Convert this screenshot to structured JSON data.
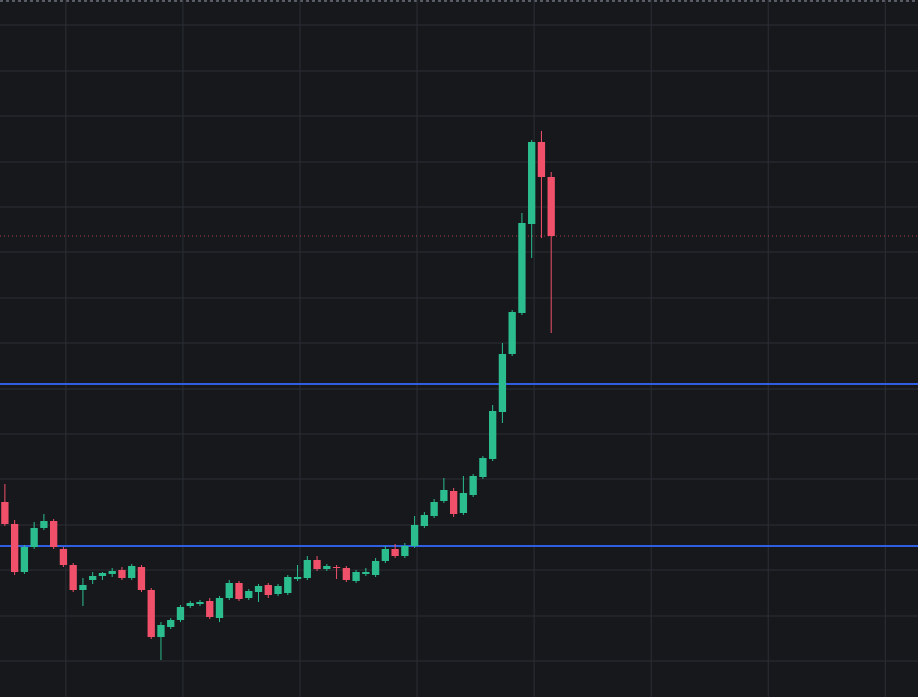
{
  "chart_data": {
    "type": "candlestick",
    "ylim": [
      0,
      697
    ],
    "yticks": [
      36,
      81,
      127,
      172,
      218,
      263,
      308,
      354,
      399,
      445,
      490,
      535,
      581,
      626,
      672
    ],
    "xlim": [
      -0.5,
      93.6
    ],
    "xticks": [
      6.25,
      18.25,
      30.25,
      42.25,
      54.25,
      66.25,
      78.25,
      90.25
    ],
    "grid": true,
    "up_color": "#2bbd8e",
    "down_color": "#f0506a",
    "series": [
      {
        "name": "open",
        "values": [
          195,
          173,
          125,
          150,
          169,
          176,
          148,
          132,
          107,
          117,
          121,
          123,
          127,
          119,
          130,
          107,
          60,
          70,
          77,
          91,
          93,
          96,
          79,
          99,
          114,
          99,
          105,
          112,
          103,
          104,
          118,
          119,
          137,
          128,
          130,
          129,
          116,
          123,
          122,
          136,
          148,
          141,
          151,
          171,
          181,
          196,
          206,
          184,
          202,
          220,
          238,
          285,
          343,
          384,
          473,
          555,
          520
        ]
      },
      {
        "name": "high",
        "values": [
          213,
          177,
          152,
          175,
          183,
          178,
          150,
          134,
          119,
          125,
          125,
          129,
          130,
          133,
          132,
          109,
          75,
          79,
          92,
          96,
          97,
          99,
          101,
          117,
          116,
          108,
          113,
          114,
          113,
          122,
          132,
          141,
          141,
          133,
          132,
          131,
          127,
          129,
          139,
          151,
          153,
          154,
          181,
          185,
          198,
          219,
          209,
          221,
          223,
          241,
          292,
          354,
          387,
          484,
          557,
          566,
          525
        ]
      },
      {
        "name": "low",
        "values": [
          171,
          122,
          123,
          148,
          167,
          148,
          130,
          105,
          91,
          113,
          117,
          120,
          117,
          117,
          105,
          58,
          37,
          68,
          75,
          89,
          91,
          78,
          75,
          97,
          96,
          97,
          95,
          99,
          101,
          102,
          116,
          117,
          126,
          126,
          118,
          115,
          114,
          121,
          120,
          134,
          139,
          139,
          149,
          169,
          179,
          194,
          180,
          182,
          200,
          218,
          236,
          274,
          341,
          382,
          439,
          459,
          364
        ]
      },
      {
        "name": "close",
        "values": [
          173,
          125,
          150,
          169,
          176,
          150,
          132,
          107,
          112,
          121,
          124,
          126,
          119,
          131,
          107,
          60,
          72,
          77,
          90,
          94,
          95,
          80,
          99,
          114,
          98,
          106,
          111,
          102,
          111,
          120,
          120,
          137,
          128,
          131,
          129,
          117,
          125,
          125,
          136,
          148,
          141,
          151,
          172,
          182,
          195,
          207,
          183,
          204,
          221,
          239,
          286,
          343,
          385,
          474,
          555,
          520,
          461
        ]
      }
    ],
    "hlines": [
      {
        "value": 313,
        "color": "#2f5fe0"
      },
      {
        "value": 151,
        "color": "#2f5fe0"
      }
    ],
    "price_line": {
      "value": 461,
      "color": "#f0506a"
    }
  }
}
